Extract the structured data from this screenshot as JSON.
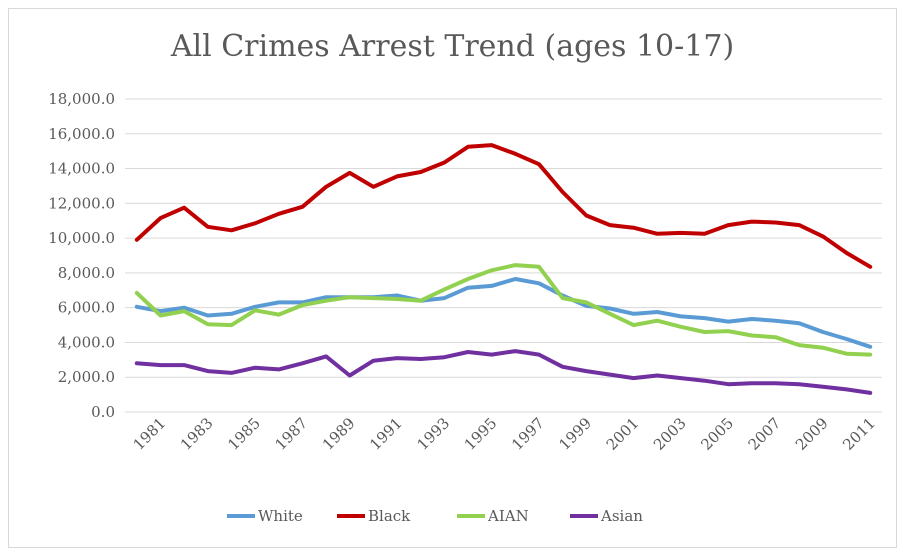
{
  "chart_data": {
    "type": "line",
    "title": "All Crimes Arrest Trend (ages 10-17)",
    "xlabel": "",
    "ylabel": "",
    "ylim": [
      0,
      18000
    ],
    "yticks": [
      "0.0",
      "2,000.0",
      "4,000.0",
      "6,000.0",
      "8,000.0",
      "10,000.0",
      "12,000.0",
      "14,000.0",
      "16,000.0",
      "18,000.0"
    ],
    "x": [
      1980,
      1981,
      1982,
      1983,
      1984,
      1985,
      1986,
      1987,
      1988,
      1989,
      1990,
      1991,
      1992,
      1993,
      1994,
      1995,
      1996,
      1997,
      1998,
      1999,
      2000,
      2001,
      2002,
      2003,
      2004,
      2005,
      2006,
      2007,
      2008,
      2009,
      2010,
      2011
    ],
    "xtick_labels": [
      "1981",
      "1983",
      "1985",
      "1987",
      "1989",
      "1991",
      "1993",
      "1995",
      "1997",
      "1999",
      "2001",
      "2003",
      "2005",
      "2007",
      "2009",
      "2011"
    ],
    "grid": true,
    "legend_position": "bottom",
    "series": [
      {
        "name": "White",
        "color": "#5b9bd5",
        "values": [
          6050,
          5800,
          6000,
          5550,
          5650,
          6050,
          6300,
          6300,
          6600,
          6600,
          6600,
          6700,
          6400,
          6550,
          7150,
          7250,
          7650,
          7400,
          6700,
          6100,
          5950,
          5650,
          5750,
          5500,
          5400,
          5200,
          5350,
          5250,
          5100,
          4600,
          4200,
          3750
        ]
      },
      {
        "name": "Black",
        "color": "#c00000",
        "values": [
          9900,
          11150,
          11750,
          10650,
          10450,
          10850,
          11400,
          11800,
          12950,
          13750,
          12950,
          13550,
          13800,
          14350,
          15250,
          15350,
          14850,
          14250,
          12650,
          11300,
          10750,
          10600,
          10250,
          10300,
          10250,
          10750,
          10950,
          10900,
          10750,
          10100,
          9150,
          8350
        ]
      },
      {
        "name": "AIAN",
        "color": "#92d050",
        "values": [
          6850,
          5550,
          5800,
          5050,
          5000,
          5850,
          5600,
          6150,
          6400,
          6600,
          6550,
          6500,
          6400,
          7050,
          7650,
          8150,
          8450,
          8350,
          6550,
          6300,
          5650,
          5000,
          5250,
          4900,
          4600,
          4650,
          4400,
          4300,
          3850,
          3700,
          3350,
          3300
        ]
      },
      {
        "name": "Asian",
        "color": "#7030a0",
        "values": [
          2800,
          2700,
          2700,
          2350,
          2250,
          2550,
          2450,
          2800,
          3200,
          2100,
          2950,
          3100,
          3050,
          3150,
          3450,
          3300,
          3500,
          3300,
          2600,
          2350,
          2150,
          1950,
          2100,
          1950,
          1800,
          1600,
          1650,
          1650,
          1600,
          1450,
          1300,
          1100
        ]
      }
    ]
  }
}
